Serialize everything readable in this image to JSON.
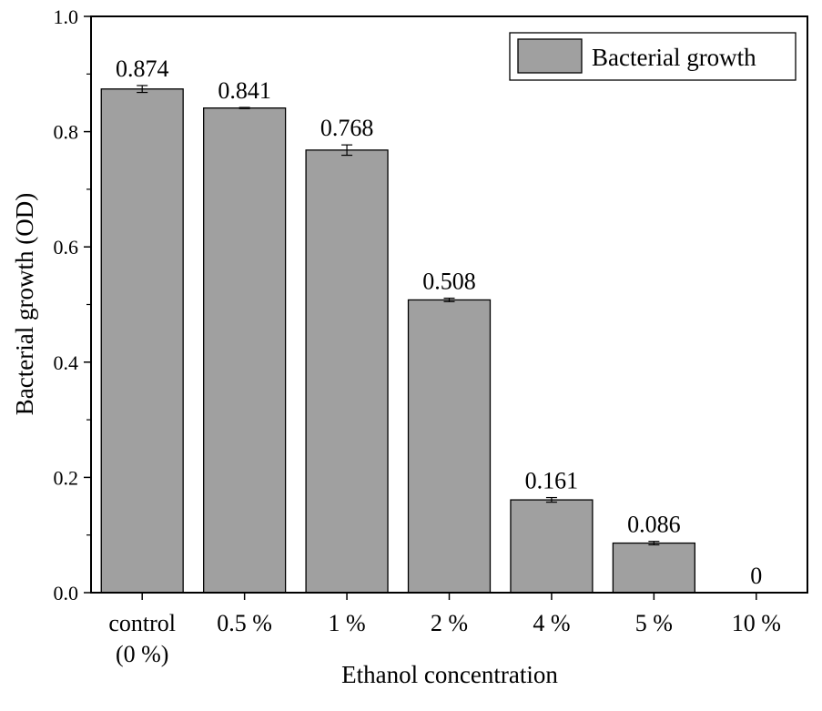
{
  "chart_data": {
    "type": "bar",
    "categories": [
      "control\n(0 %)",
      "0.5 %",
      "1 %",
      "2 %",
      "4 %",
      "5 %",
      "10 %"
    ],
    "series": [
      {
        "name": "Bacterial growth",
        "values": [
          0.874,
          0.841,
          0.768,
          0.508,
          0.161,
          0.086,
          0
        ],
        "errors": [
          0.006,
          0.001,
          0.009,
          0.003,
          0.004,
          0.003,
          0
        ],
        "color": "#a0a0a0"
      }
    ],
    "data_labels": [
      "0.874",
      "0.841",
      "0.768",
      "0.508",
      "0.161",
      "0.086",
      "0"
    ],
    "xlabel": "Ethanol concentration",
    "ylabel": "Bacterial growth (OD)",
    "ylim": [
      0,
      1.0
    ],
    "yticks": [
      "0.0",
      "0.2",
      "0.4",
      "0.6",
      "0.8",
      "1.0"
    ],
    "grid": false,
    "legend_position": "top-right"
  }
}
